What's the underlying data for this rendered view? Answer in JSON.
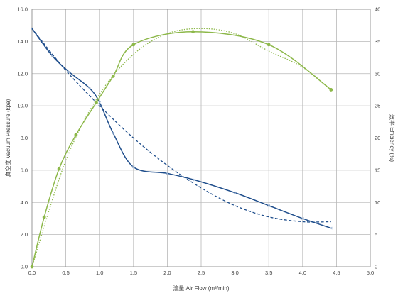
{
  "chart_data": {
    "type": "line",
    "xlabel": "流量 Air Flow (m³/min)",
    "ylabel_left": "真空度 Vacuum Pressure (kpa)",
    "ylabel_right": "效率 Efficiency (%)",
    "xlim": [
      0,
      5.0
    ],
    "ylim_left": [
      0,
      16
    ],
    "ylim_right": [
      0,
      40
    ],
    "grid": true,
    "x_ticks": [
      "0.0",
      "0.5",
      "1.0",
      "1.5",
      "2.0",
      "2.5",
      "3.0",
      "3.5",
      "4.0",
      "4.5",
      "5.0"
    ],
    "y_left_ticks": [
      "0.0",
      "2.0",
      "4.0",
      "6.0",
      "8.0",
      "10.0",
      "12.0",
      "14.0",
      "16.0"
    ],
    "y_right_ticks": [
      "0",
      "5",
      "10",
      "15",
      "20",
      "25",
      "30",
      "35",
      "40"
    ],
    "colors": {
      "pressure": "#1f4e8c",
      "efficiency": "#8db84a"
    },
    "series": [
      {
        "key": "pressure",
        "axis": "left",
        "style": "solid",
        "marker": "x",
        "x": [
          0,
          0.3,
          0.55,
          0.85,
          1.0,
          1.2,
          1.5,
          2.0,
          2.4,
          3.0,
          3.5,
          4.0,
          4.42
        ],
        "y": [
          14.8,
          13.1,
          12.1,
          11.1,
          10.2,
          8.3,
          6.2,
          5.8,
          5.4,
          4.6,
          3.8,
          3.0,
          2.4
        ]
      },
      {
        "key": "pressure-trend",
        "axis": "left",
        "style": "dashed",
        "x": [
          0,
          0.5,
          1.0,
          1.5,
          2.0,
          2.5,
          3.0,
          3.5,
          4.0,
          4.42
        ],
        "y": [
          14.8,
          12.2,
          10.0,
          8.0,
          6.3,
          4.9,
          3.8,
          3.1,
          2.8,
          2.8
        ]
      },
      {
        "key": "efficiency",
        "axis": "right",
        "style": "solid",
        "marker": "circle",
        "x": [
          0,
          0.18,
          0.4,
          0.65,
          0.95,
          1.2,
          1.5,
          2.38,
          3.5,
          4.42
        ],
        "y": [
          0,
          7.7,
          15.2,
          20.5,
          25.5,
          29.6,
          34.5,
          36.5,
          34.5,
          27.5
        ]
      },
      {
        "key": "efficiency-trend",
        "axis": "right",
        "style": "dotted",
        "x": [
          0,
          0.5,
          1.0,
          1.5,
          2.0,
          2.5,
          3.0,
          3.5,
          4.0,
          4.42
        ],
        "y": [
          0,
          16.5,
          26.8,
          33.0,
          36.2,
          37.0,
          36.2,
          33.5,
          31.0,
          27.5
        ]
      }
    ]
  }
}
